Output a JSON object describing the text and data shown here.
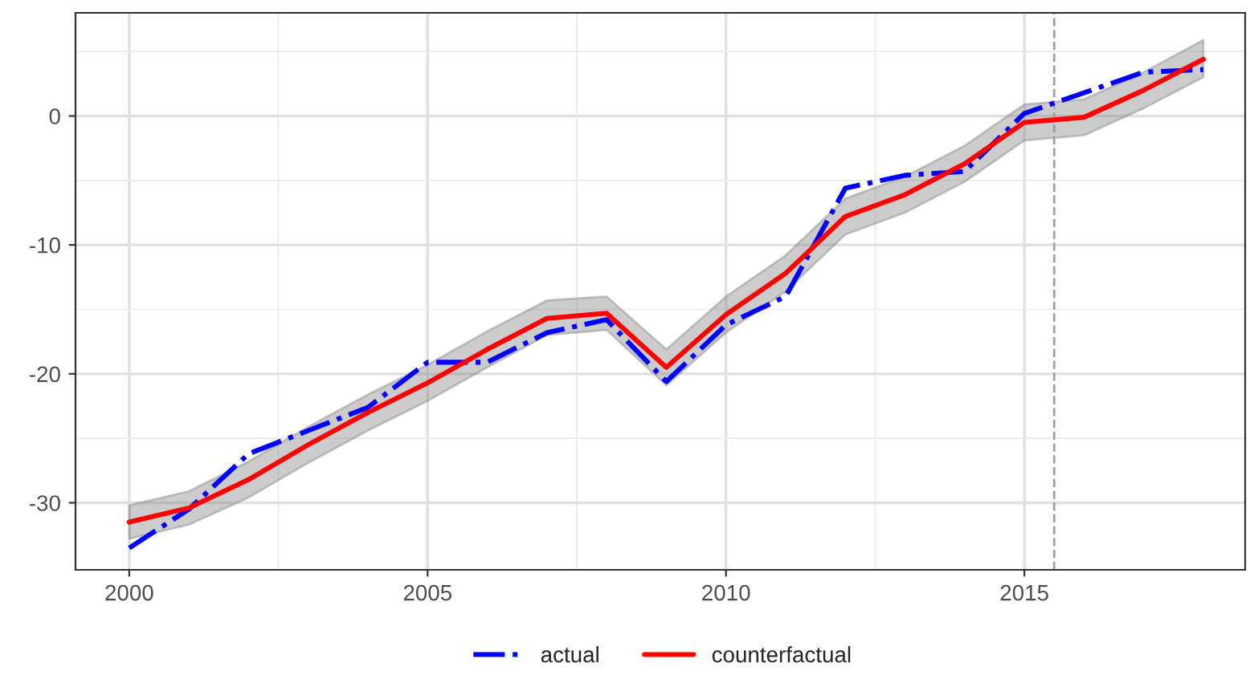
{
  "chart_data": {
    "type": "line",
    "x": [
      2000,
      2001,
      2002,
      2003,
      2004,
      2005,
      2006,
      2007,
      2008,
      2009,
      2010,
      2011,
      2012,
      2013,
      2014,
      2015,
      2016,
      2017,
      2018
    ],
    "series": [
      {
        "name": "actual",
        "color": "#0000ff",
        "line_style": "dashdot",
        "values": [
          -33.5,
          -30.5,
          -26.2,
          -24.4,
          -22.6,
          -19.1,
          -19.1,
          -16.8,
          -15.8,
          -20.6,
          -16.2,
          -14.0,
          -5.6,
          -4.6,
          -4.3,
          0.2,
          1.8,
          3.4,
          3.6
        ]
      },
      {
        "name": "counterfactual",
        "color": "#ff0000",
        "line_style": "solid",
        "values": [
          -31.5,
          -30.4,
          -28.2,
          -25.5,
          -23.0,
          -20.7,
          -18.1,
          -15.7,
          -15.3,
          -19.5,
          -15.4,
          -12.2,
          -7.8,
          -6.1,
          -3.7,
          -0.5,
          -0.1,
          2.0,
          4.4
        ],
        "lower": [
          -32.8,
          -31.7,
          -29.6,
          -26.9,
          -24.4,
          -22.1,
          -19.5,
          -17.0,
          -16.6,
          -20.9,
          -16.8,
          -13.6,
          -9.2,
          -7.5,
          -5.1,
          -1.9,
          -1.5,
          0.6,
          3.0
        ],
        "upper": [
          -30.2,
          -29.1,
          -26.8,
          -24.1,
          -21.6,
          -19.3,
          -16.7,
          -14.3,
          -14.0,
          -18.1,
          -14.0,
          -10.8,
          -6.4,
          -4.7,
          -2.3,
          0.9,
          1.3,
          3.4,
          5.9
        ]
      }
    ],
    "xlim": [
      1999.1,
      2018.7
    ],
    "ylim": [
      -35.2,
      8.0
    ],
    "xticks": [
      2000,
      2005,
      2010,
      2015
    ],
    "yticks": [
      -30,
      -20,
      -10,
      0
    ],
    "ref_lines": [
      {
        "axis": "x",
        "value": 2015.5,
        "color": "#a0a0a0",
        "line_style": "dashed"
      }
    ],
    "grid": true,
    "legend": "bottom"
  }
}
